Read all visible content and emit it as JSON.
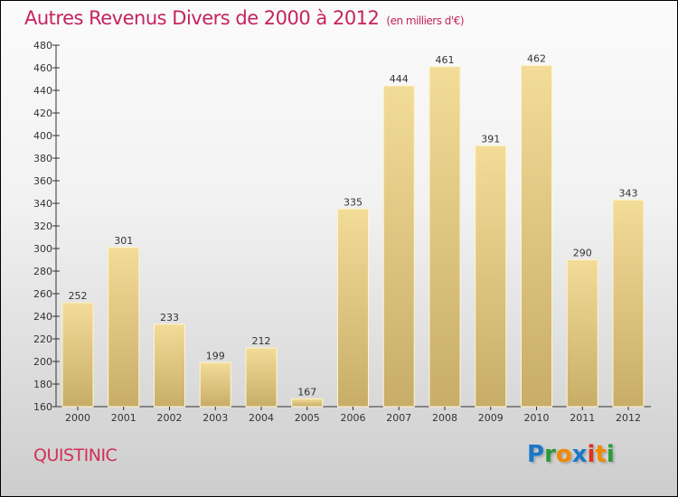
{
  "chart_data": {
    "type": "bar",
    "title": "Autres Revenus Divers de 2000 à 2012",
    "subtitle": "(en milliers d'€)",
    "categories": [
      "2000",
      "2001",
      "2002",
      "2003",
      "2004",
      "2005",
      "2006",
      "2007",
      "2008",
      "2009",
      "2010",
      "2011",
      "2012"
    ],
    "values": [
      252,
      301,
      233,
      199,
      212,
      167,
      335,
      444,
      461,
      391,
      462,
      290,
      343
    ],
    "ylim": [
      160,
      480
    ],
    "yticks": [
      160,
      180,
      200,
      220,
      240,
      260,
      280,
      300,
      320,
      340,
      360,
      380,
      400,
      420,
      440,
      460,
      480
    ],
    "xlabel": "",
    "ylabel": "",
    "grid": false,
    "legend": "none"
  },
  "location": "QUISTINIC",
  "brand": {
    "letters": [
      "P",
      "r",
      "o",
      "x",
      "i",
      "t",
      "i"
    ],
    "colors": [
      "#1a78c8",
      "#2a9a3a",
      "#f08a00",
      "#1a78c8",
      "#e0301e",
      "#f08a00",
      "#2a9a3a"
    ]
  }
}
